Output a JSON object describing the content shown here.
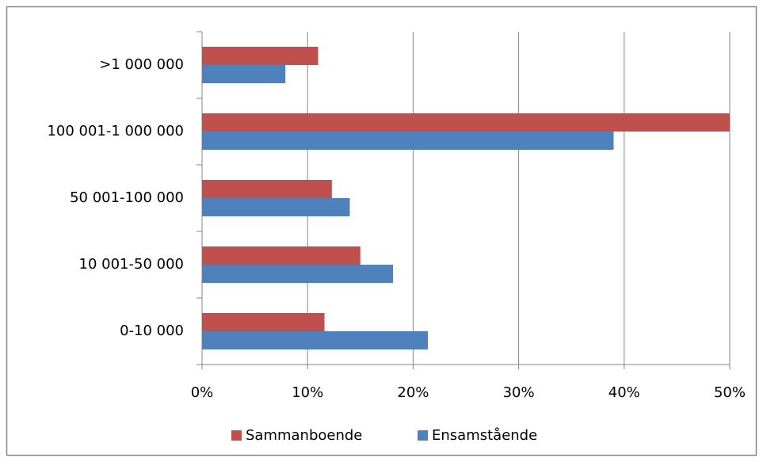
{
  "chart_data": {
    "type": "barh",
    "categories": [
      "0-10 000",
      "10 001-50 000",
      "50 001-100 000",
      "100 001-1 000 000",
      ">1 000 000"
    ],
    "series": [
      {
        "name": "Sammanboende",
        "color": "#c0504d",
        "values": [
          11.6,
          15.0,
          12.3,
          50.0,
          11.0
        ]
      },
      {
        "name": "Ensamstående",
        "color": "#4f81bd",
        "values": [
          21.4,
          18.1,
          14.0,
          39.0,
          7.9
        ]
      }
    ],
    "xlim": [
      0,
      50
    ],
    "xticks": [
      {
        "value": 0,
        "label": "0%"
      },
      {
        "value": 10,
        "label": "10%"
      },
      {
        "value": 20,
        "label": "20%"
      },
      {
        "value": 30,
        "label": "30%"
      },
      {
        "value": 40,
        "label": "40%"
      },
      {
        "value": 50,
        "label": "50%"
      }
    ],
    "grid": true,
    "legend": "bottom"
  }
}
